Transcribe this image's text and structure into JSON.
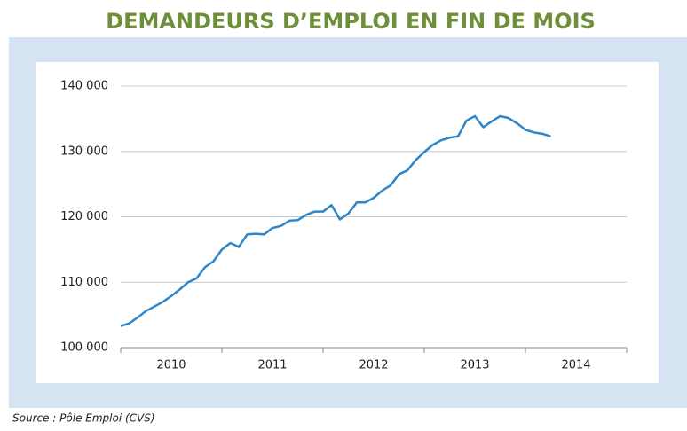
{
  "chart_data": {
    "type": "line",
    "title": "DEMANDEURS D’EMPLOI EN FIN DE MOIS",
    "source": "Source : Pôle Emploi (CVS)",
    "categories": [
      "2010",
      null,
      null,
      null,
      null,
      null,
      null,
      null,
      null,
      null,
      null,
      null,
      "2011",
      null,
      null,
      null,
      null,
      null,
      null,
      null,
      null,
      null,
      null,
      null,
      "2012",
      null,
      null,
      null,
      null,
      null,
      null,
      null,
      null,
      null,
      null,
      null,
      "2013",
      null,
      null,
      null,
      null,
      null,
      null,
      null,
      null,
      null,
      null,
      null,
      "2014",
      null,
      null,
      null,
      null,
      null,
      null,
      null,
      null,
      null,
      null,
      null
    ],
    "series": [
      {
        "name": "Demandeurs d’emploi",
        "color": "#2e86c8",
        "values": [
          103300,
          103700,
          104600,
          105600,
          106300,
          107000,
          107900,
          108900,
          110000,
          110600,
          112300,
          113200,
          115000,
          116000,
          115400,
          117300,
          117400,
          117300,
          118300,
          118600,
          119400,
          119500,
          120300,
          120800,
          120800,
          121800,
          119600,
          120500,
          122200,
          122200,
          122900,
          124000,
          124800,
          126500,
          127100,
          128700,
          129900,
          131000,
          131700,
          132100,
          132300,
          134700,
          135400,
          133700,
          134600,
          135400,
          135100,
          134300,
          133300,
          132900,
          132700,
          132300,
          null,
          null,
          null,
          null,
          null,
          null,
          null,
          null
        ]
      }
    ],
    "ylim": [
      100000,
      140000
    ],
    "yticks": [
      {
        "value": 100000,
        "label": "100 000"
      },
      {
        "value": 110000,
        "label": "110 000"
      },
      {
        "value": 120000,
        "label": "120 000"
      },
      {
        "value": 130000,
        "label": "130 000"
      },
      {
        "value": 140000,
        "label": "140 000"
      }
    ],
    "grid": true
  }
}
